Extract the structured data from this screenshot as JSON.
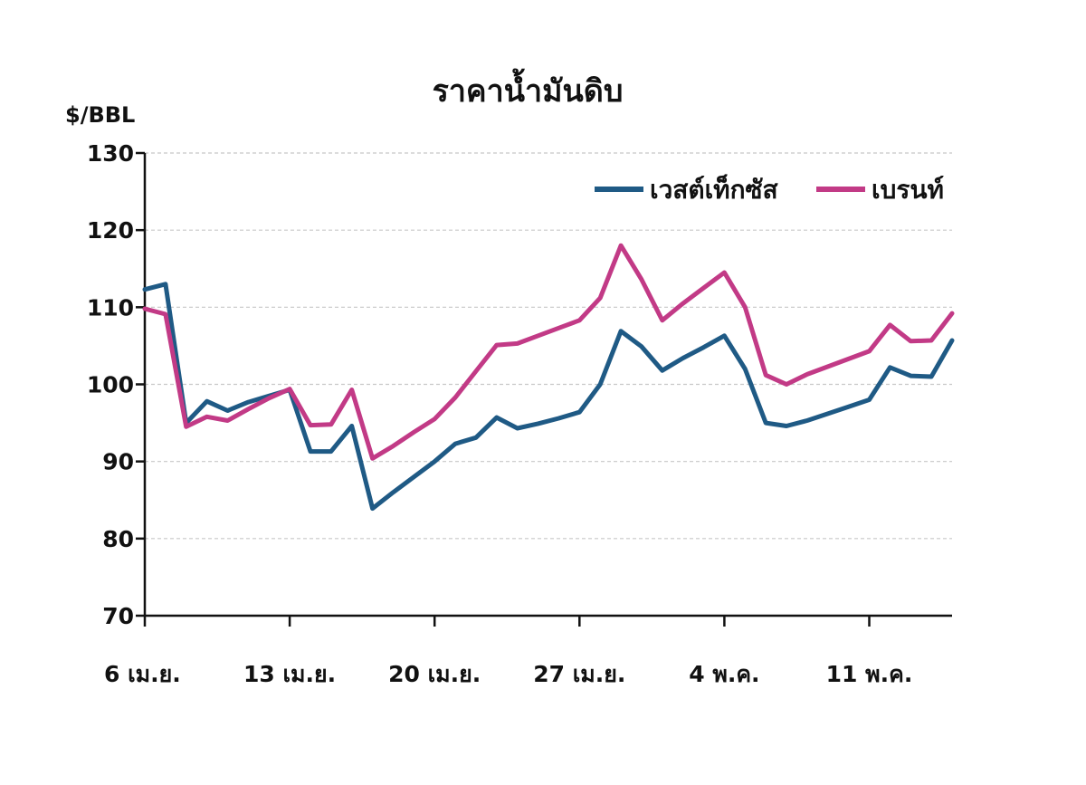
{
  "chart_data": {
    "type": "line",
    "title": "ราคาน้ำมันดิบ",
    "ylabel": "$/BBL",
    "xlabel": "",
    "ylim": [
      70,
      130
    ],
    "yticks": [
      70,
      80,
      90,
      100,
      110,
      120,
      130
    ],
    "xlim": [
      0,
      39
    ],
    "xticks": [
      {
        "x": 0,
        "label": "6 เม.ย."
      },
      {
        "x": 7,
        "label": "13 เม.ย."
      },
      {
        "x": 14,
        "label": "20 เม.ย."
      },
      {
        "x": 21,
        "label": "27 เม.ย."
      },
      {
        "x": 28,
        "label": "4 พ.ค."
      },
      {
        "x": 35,
        "label": "11 พ.ค."
      }
    ],
    "grid": "horizontal dashed",
    "legend": "top-right",
    "series": [
      {
        "name": "เวสต์เท็กซัส",
        "color": "#1f5a85",
        "x": [
          0,
          1,
          2,
          3,
          4,
          5,
          6,
          7,
          8,
          9,
          10,
          11,
          12,
          13,
          14,
          15,
          16,
          17,
          18,
          19,
          20,
          21,
          22,
          23,
          24,
          25,
          26,
          27,
          28,
          29,
          30,
          31,
          32,
          33,
          34,
          35,
          36,
          37,
          38,
          39
        ],
        "values": [
          112.3,
          113.0,
          95.0,
          97.8,
          96.6,
          97.7,
          98.5,
          99.3,
          91.3,
          91.3,
          94.6,
          83.9,
          86.0,
          88.0,
          90.0,
          92.3,
          93.1,
          95.7,
          94.3,
          94.9,
          95.6,
          96.4,
          100.0,
          106.9,
          104.9,
          101.8,
          103.4,
          104.8,
          106.3,
          102.0,
          95.0,
          94.6,
          95.3,
          96.2,
          97.1,
          98.0,
          102.2,
          101.1,
          101.0,
          105.7
        ]
      },
      {
        "name": "เบรนท์",
        "color": "#c23a86",
        "x": [
          0,
          1,
          2,
          3,
          4,
          5,
          6,
          7,
          8,
          9,
          10,
          11,
          12,
          13,
          14,
          15,
          16,
          17,
          18,
          19,
          20,
          21,
          22,
          23,
          24,
          25,
          26,
          27,
          28,
          29,
          30,
          31,
          32,
          33,
          34,
          35,
          36,
          37,
          38,
          39
        ],
        "values": [
          109.8,
          109.1,
          94.5,
          95.8,
          95.3,
          96.8,
          98.2,
          99.4,
          94.7,
          94.8,
          99.3,
          90.4,
          92.0,
          93.8,
          95.5,
          98.3,
          101.7,
          105.1,
          105.3,
          106.3,
          107.3,
          108.3,
          111.2,
          118.0,
          113.6,
          108.3,
          110.5,
          112.5,
          114.5,
          110.0,
          101.2,
          100.0,
          101.3,
          102.3,
          103.3,
          104.3,
          107.7,
          105.6,
          105.7,
          109.2
        ]
      }
    ]
  }
}
